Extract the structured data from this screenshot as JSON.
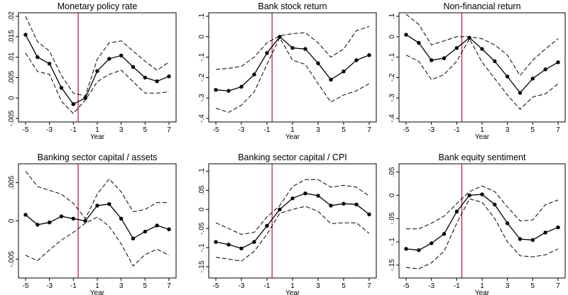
{
  "figure": {
    "colors": {
      "line": "#000000",
      "event_line": "#b0103a",
      "axis": "#000000"
    }
  },
  "chart_data": [
    {
      "type": "line",
      "title": "Monetary policy rate",
      "xlabel": "Year",
      "x": [
        -5,
        -4,
        -3,
        -2,
        -1,
        0,
        1,
        2,
        3,
        4,
        5,
        6,
        7
      ],
      "xticks": [
        "-5",
        "-3",
        "-1",
        "1",
        "3",
        "5",
        "7"
      ],
      "ylim": [
        -0.005,
        0.02
      ],
      "yticks": [
        "-.005",
        "0",
        ".005",
        ".01",
        ".015",
        ".02"
      ],
      "event_x": -0.6,
      "series": [
        {
          "role": "estimate",
          "style": "solid with markers",
          "values": [
            0.0155,
            0.01,
            0.0084,
            0.0025,
            -0.0015,
            0.0,
            0.0066,
            0.0096,
            0.0104,
            0.0076,
            0.005,
            0.0041,
            0.0053
          ]
        },
        {
          "role": "upper",
          "style": "dashed",
          "values": [
            0.02,
            0.0138,
            0.0115,
            0.0055,
            0.0012,
            0.0005,
            0.0095,
            0.0135,
            0.014,
            0.0115,
            0.009,
            0.0068,
            0.0088
          ]
        },
        {
          "role": "lower",
          "style": "dashed",
          "values": [
            0.011,
            0.0065,
            0.0058,
            -0.0008,
            -0.0038,
            -0.0005,
            0.004,
            0.0058,
            0.0068,
            0.004,
            0.0012,
            0.0012,
            0.0015
          ]
        }
      ]
    },
    {
      "type": "line",
      "title": "Bank stock return",
      "xlabel": "Year",
      "x": [
        -5,
        -4,
        -3,
        -2,
        -1,
        0,
        1,
        2,
        3,
        4,
        5,
        6,
        7
      ],
      "xticks": [
        "-5",
        "-3",
        "-1",
        "1",
        "3",
        "5",
        "7"
      ],
      "ylim": [
        -0.4,
        0.1
      ],
      "yticks": [
        "-.4",
        "-.3",
        "-.2",
        "-.1",
        "0",
        ".1"
      ],
      "event_x": -0.6,
      "series": [
        {
          "role": "estimate",
          "style": "solid with markers",
          "values": [
            -0.26,
            -0.265,
            -0.245,
            -0.185,
            -0.08,
            0.0,
            -0.055,
            -0.06,
            -0.13,
            -0.21,
            -0.17,
            -0.115,
            -0.09
          ]
        },
        {
          "role": "upper",
          "style": "dashed",
          "values": [
            -0.16,
            -0.155,
            -0.145,
            -0.1,
            -0.03,
            0.005,
            0.015,
            0.02,
            -0.03,
            -0.1,
            -0.06,
            0.03,
            0.05
          ]
        },
        {
          "role": "lower",
          "style": "dashed",
          "values": [
            -0.35,
            -0.37,
            -0.335,
            -0.27,
            -0.135,
            -0.005,
            -0.115,
            -0.135,
            -0.23,
            -0.32,
            -0.285,
            -0.265,
            -0.23
          ]
        }
      ]
    },
    {
      "type": "line",
      "title": "Non-financial return",
      "xlabel": "Year",
      "x": [
        -5,
        -4,
        -3,
        -2,
        -1,
        0,
        1,
        2,
        3,
        4,
        5,
        6,
        7
      ],
      "xticks": [
        "-5",
        "-3",
        "-1",
        "1",
        "3",
        "5",
        "7"
      ],
      "ylim": [
        -0.4,
        0.1
      ],
      "yticks": [
        "-.4",
        "-.3",
        "-.2",
        "-.1",
        "0",
        ".1"
      ],
      "event_x": -0.6,
      "series": [
        {
          "role": "estimate",
          "style": "solid with markers",
          "values": [
            0.01,
            -0.03,
            -0.115,
            -0.105,
            -0.055,
            -0.005,
            -0.06,
            -0.12,
            -0.195,
            -0.275,
            -0.205,
            -0.16,
            -0.125
          ]
        },
        {
          "role": "upper",
          "style": "dashed",
          "values": [
            0.11,
            0.06,
            -0.04,
            -0.02,
            0.0,
            0.0,
            -0.01,
            -0.04,
            -0.09,
            -0.19,
            -0.115,
            -0.06,
            -0.01
          ]
        },
        {
          "role": "lower",
          "style": "dashed",
          "values": [
            -0.09,
            -0.12,
            -0.21,
            -0.185,
            -0.12,
            -0.01,
            -0.125,
            -0.205,
            -0.285,
            -0.355,
            -0.295,
            -0.28,
            -0.23
          ]
        }
      ]
    },
    {
      "type": "line",
      "title": "Banking sector capital / assets",
      "xlabel": "Year",
      "x": [
        -5,
        -4,
        -3,
        -2,
        -1,
        0,
        1,
        2,
        3,
        4,
        5,
        6,
        7
      ],
      "xticks": [
        "-5",
        "-3",
        "-1",
        "1",
        "3",
        "5",
        "7"
      ],
      "ylim": [
        -0.007,
        0.007
      ],
      "yticks": [
        "-.005",
        "0",
        ".005"
      ],
      "event_x": -0.6,
      "series": [
        {
          "role": "estimate",
          "style": "solid with markers",
          "values": [
            0.0008,
            -0.0005,
            -0.0002,
            0.0006,
            0.0003,
            0.0,
            0.002,
            0.0022,
            0.0003,
            -0.0023,
            -0.0014,
            -0.0006,
            -0.0011
          ]
        },
        {
          "role": "upper",
          "style": "dashed",
          "values": [
            0.0065,
            0.0045,
            0.004,
            0.0035,
            0.0023,
            0.0003,
            0.0035,
            0.0055,
            0.0038,
            0.0012,
            0.0015,
            0.0024,
            0.0024
          ]
        },
        {
          "role": "lower",
          "style": "dashed",
          "values": [
            -0.0045,
            -0.0052,
            -0.0038,
            -0.0025,
            -0.0015,
            -0.0003,
            0.0005,
            -0.0007,
            -0.003,
            -0.0059,
            -0.0044,
            -0.0037,
            -0.0045
          ]
        }
      ]
    },
    {
      "type": "line",
      "title": "Banking sector capital / CPI",
      "xlabel": "Year",
      "x": [
        -5,
        -4,
        -3,
        -2,
        -1,
        0,
        1,
        2,
        3,
        4,
        5,
        6,
        7
      ],
      "xticks": [
        "-5",
        "-3",
        "-1",
        "1",
        "3",
        "5",
        "7"
      ],
      "ylim": [
        -0.17,
        0.11
      ],
      "yticks": [
        "-.15",
        "-.1",
        "-.05",
        "0",
        ".05",
        ".1"
      ],
      "event_x": -0.6,
      "series": [
        {
          "role": "estimate",
          "style": "solid with markers",
          "values": [
            -0.085,
            -0.092,
            -0.102,
            -0.085,
            -0.043,
            0.0,
            0.029,
            0.042,
            0.036,
            0.01,
            0.015,
            0.013,
            -0.013
          ]
        },
        {
          "role": "upper",
          "style": "dashed",
          "values": [
            -0.035,
            -0.05,
            -0.065,
            -0.06,
            -0.02,
            0.01,
            0.06,
            0.078,
            0.078,
            0.058,
            0.063,
            0.058,
            0.035
          ]
        },
        {
          "role": "lower",
          "style": "dashed",
          "values": [
            -0.125,
            -0.13,
            -0.135,
            -0.11,
            -0.065,
            -0.01,
            0.0,
            0.008,
            -0.005,
            -0.037,
            -0.035,
            -0.035,
            -0.063
          ]
        }
      ]
    },
    {
      "type": "line",
      "title": "Bank equity sentiment",
      "xlabel": "Year",
      "x": [
        -5,
        -4,
        -3,
        -2,
        -1,
        0,
        1,
        2,
        3,
        4,
        5,
        6,
        7
      ],
      "xticks": [
        "-5",
        "-3",
        "-1",
        "1",
        "3",
        "5",
        "7"
      ],
      "ylim": [
        -0.17,
        0.06
      ],
      "yticks": [
        "-.15",
        "-.1",
        "-.05",
        "0",
        ".05"
      ],
      "event_x": -0.6,
      "series": [
        {
          "role": "estimate",
          "style": "solid with markers",
          "values": [
            -0.115,
            -0.118,
            -0.103,
            -0.083,
            -0.035,
            0.0,
            0.002,
            -0.02,
            -0.06,
            -0.094,
            -0.096,
            -0.08,
            -0.069
          ]
        },
        {
          "role": "upper",
          "style": "dashed",
          "values": [
            -0.072,
            -0.072,
            -0.06,
            -0.045,
            -0.018,
            0.008,
            0.02,
            0.008,
            -0.025,
            -0.055,
            -0.053,
            -0.02,
            -0.01
          ]
        },
        {
          "role": "lower",
          "style": "dashed",
          "values": [
            -0.155,
            -0.158,
            -0.145,
            -0.12,
            -0.06,
            -0.008,
            -0.015,
            -0.05,
            -0.1,
            -0.13,
            -0.132,
            -0.128,
            -0.115
          ]
        }
      ]
    }
  ]
}
